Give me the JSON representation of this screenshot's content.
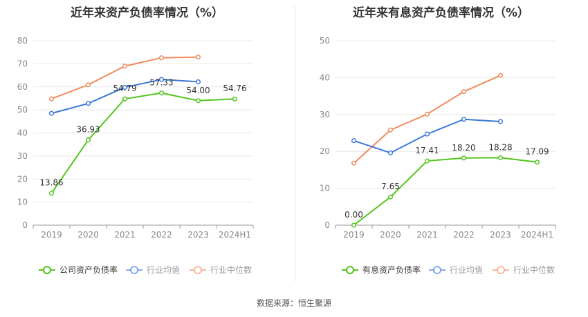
{
  "charts": [
    {
      "title": "近年来资产负债率情况（%）",
      "legend": [
        "公司资产负债率",
        "行业均值",
        "行业中位数"
      ]
    },
    {
      "title": "近年来有息资产负债率情况（%）",
      "legend": [
        "有息资产负债率",
        "行业均值",
        "行业中位数"
      ]
    }
  ],
  "source": "数据来源：恒生聚源",
  "chart_data": [
    {
      "type": "line",
      "title": "近年来资产负债率情况（%）",
      "categories": [
        "2019",
        "2020",
        "2021",
        "2022",
        "2023",
        "2024H1"
      ],
      "ylim": [
        0,
        80
      ],
      "yticks": [
        0,
        10,
        20,
        30,
        40,
        50,
        60,
        70,
        80
      ],
      "grid": true,
      "legend_position": "bottom",
      "series": [
        {
          "name": "公司资产负债率",
          "color": "#52c41a",
          "values": [
            13.86,
            36.93,
            54.79,
            57.33,
            54.0,
            54.76
          ],
          "labels": [
            "13.86",
            "36.93",
            "54.79",
            "57.33",
            "54.00",
            "54.76"
          ]
        },
        {
          "name": "行业均值",
          "color": "#3a77d9",
          "values": [
            48.5,
            52.8,
            59.8,
            63.2,
            62.2,
            null
          ]
        },
        {
          "name": "行业中位数",
          "color": "#f08a5d",
          "values": [
            54.8,
            60.9,
            69.0,
            72.6,
            72.9,
            null
          ]
        }
      ]
    },
    {
      "type": "line",
      "title": "近年来有息资产负债率情况（%）",
      "categories": [
        "2019",
        "2020",
        "2021",
        "2022",
        "2023",
        "2024H1"
      ],
      "ylim": [
        0,
        50
      ],
      "yticks": [
        0,
        10,
        20,
        30,
        40,
        50
      ],
      "grid": true,
      "legend_position": "bottom",
      "series": [
        {
          "name": "有息资产负债率",
          "color": "#52c41a",
          "values": [
            0.0,
            7.65,
            17.41,
            18.2,
            18.28,
            17.09
          ],
          "labels": [
            "0.00",
            "7.65",
            "17.41",
            "18.20",
            "18.28",
            "17.09"
          ]
        },
        {
          "name": "行业均值",
          "color": "#3a77d9",
          "values": [
            22.9,
            19.6,
            24.7,
            28.7,
            28.1,
            null
          ]
        },
        {
          "name": "行业中位数",
          "color": "#f08a5d",
          "values": [
            16.8,
            25.8,
            30.1,
            36.2,
            40.6,
            null
          ]
        }
      ]
    }
  ]
}
